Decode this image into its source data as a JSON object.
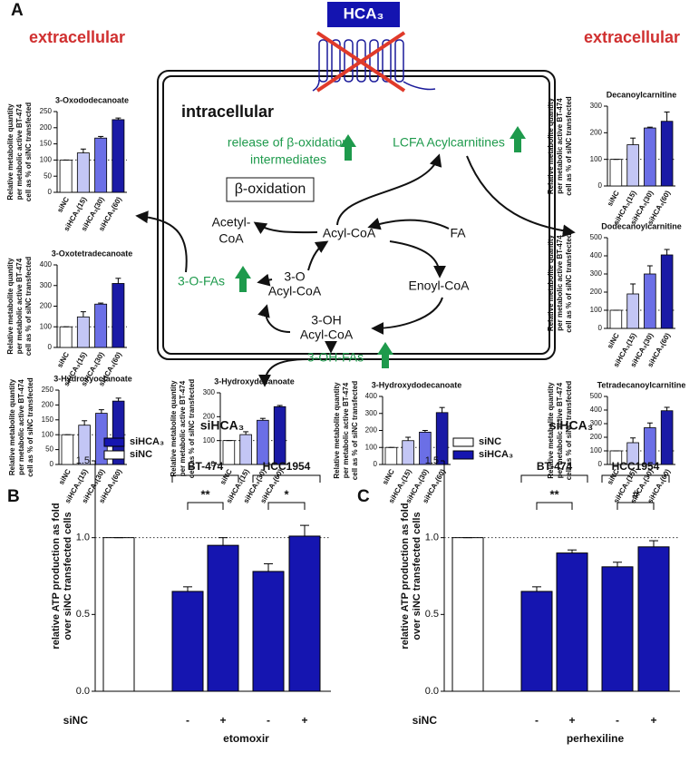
{
  "panel_labels": [
    "A",
    "B",
    "C"
  ],
  "diagram": {
    "extracellular_left": "extracellular",
    "extracellular_right": "extracellular",
    "receptor": "HCA₃",
    "compartment": "intracellular",
    "release": [
      "release of β-oxidation",
      "intermediates"
    ],
    "lcfa": "LCFA Acylcarnitines",
    "beta_oxidation": "β-oxidation",
    "acetyl_coa": [
      "Acetyl-",
      "CoA"
    ],
    "acyl_coa": "Acyl-CoA",
    "fa": "FA",
    "oxo_acyl_coa": [
      "3-O",
      "Acyl-CoA"
    ],
    "enoyl_coa": "Enoyl-CoA",
    "oh_acyl_coa": [
      "3-OH",
      "Acyl-CoA"
    ],
    "oxo_fas": "3-O-FAs",
    "oh_fas": "3-OH-FAs"
  },
  "chart_data": [
    {
      "type": "bar",
      "title": "3-Oxododecanoate",
      "ylabel": [
        "Relative metabolite quantity",
        "per metabolic active BT-474",
        "cell as % of siNC transfected"
      ],
      "categories": [
        "siNC",
        "siHCA₃(15)",
        "siHCA₃(30)",
        "siHCA₃(60)"
      ],
      "values": [
        100,
        122,
        168,
        225
      ],
      "errors": [
        0,
        12,
        5,
        5
      ],
      "colors": [
        "#ffffff",
        "#c3c6f5",
        "#6b6fe6",
        "#1a1aa6"
      ],
      "ylim": [
        0,
        250
      ],
      "yticks": [
        0,
        50,
        100,
        150,
        200,
        250
      ],
      "reference_line": 100
    },
    {
      "type": "bar",
      "title": "3-Oxotetradecanoate",
      "ylabel": [
        "Relative metabolite quantity",
        "per metabolic active BT-474",
        "cell as % of siNC transfected"
      ],
      "categories": [
        "siNC",
        "siHCA₃(15)",
        "siHCA₃(30)",
        "siHCA₃(60)"
      ],
      "values": [
        100,
        148,
        210,
        310
      ],
      "errors": [
        0,
        25,
        5,
        25
      ],
      "colors": [
        "#ffffff",
        "#c3c6f5",
        "#6b6fe6",
        "#1a1aa6"
      ],
      "ylim": [
        0,
        400
      ],
      "yticks": [
        0,
        100,
        200,
        300,
        400
      ],
      "reference_line": 100
    },
    {
      "type": "bar",
      "title": "3-Hydroxyoctanoate",
      "ylabel": [
        "Relative metabolite quantity",
        "per metabolic active BT-474",
        "cell as % of siNC transfected"
      ],
      "categories": [
        "siNC",
        "siHCA₃(15)",
        "siHCA₃(30)",
        "siHCA₃(60)"
      ],
      "values": [
        100,
        132,
        172,
        213
      ],
      "errors": [
        0,
        15,
        12,
        10
      ],
      "colors": [
        "#ffffff",
        "#c3c6f5",
        "#6b6fe6",
        "#1a1aa6"
      ],
      "ylim": [
        0,
        250
      ],
      "yticks": [
        0,
        50,
        100,
        150,
        200,
        250
      ],
      "reference_line": 100
    },
    {
      "type": "bar",
      "title": "3-Hydroxydecanoate",
      "ylabel": [
        "Relative metabolite quantity",
        "per metabolic active BT-474",
        "cell as % of siNC transfected"
      ],
      "categories": [
        "siNC",
        "siHCA₃(15)",
        "siHCA₃(30)",
        "siHCA₃(60)"
      ],
      "values": [
        100,
        125,
        185,
        242
      ],
      "errors": [
        0,
        12,
        8,
        5
      ],
      "colors": [
        "#ffffff",
        "#c3c6f5",
        "#6b6fe6",
        "#1a1aa6"
      ],
      "ylim": [
        0,
        300
      ],
      "yticks": [
        0,
        100,
        200,
        300
      ],
      "reference_line": 100
    },
    {
      "type": "bar",
      "title": "3-Hydroxydodecanoate",
      "ylabel": [
        "Relative metabolite quantity",
        "per metabolic active BT-474",
        "cell as % of siNC transfected"
      ],
      "categories": [
        "siNC",
        "siHCA₃(15)",
        "siHCA₃(30)",
        "siHCA₃(60)"
      ],
      "values": [
        100,
        140,
        190,
        305
      ],
      "errors": [
        0,
        20,
        10,
        30
      ],
      "colors": [
        "#ffffff",
        "#c3c6f5",
        "#6b6fe6",
        "#1a1aa6"
      ],
      "ylim": [
        0,
        400
      ],
      "yticks": [
        0,
        100,
        200,
        300,
        400
      ],
      "reference_line": 100
    },
    {
      "type": "bar",
      "title": "Decanoylcarnitine",
      "ylabel": [
        "Relative metabolite quantity",
        "per metabolic active BT-474",
        "cell as % of siNC transfected"
      ],
      "categories": [
        "siNC",
        "siHCA₃(15)",
        "siHCA₃(30)",
        "siHCA₃(60)"
      ],
      "values": [
        100,
        155,
        218,
        243
      ],
      "errors": [
        0,
        25,
        3,
        35
      ],
      "colors": [
        "#ffffff",
        "#c3c6f5",
        "#6b6fe6",
        "#1a1aa6"
      ],
      "ylim": [
        0,
        300
      ],
      "yticks": [
        0,
        100,
        200,
        300
      ],
      "reference_line": 100
    },
    {
      "type": "bar",
      "title": "Dodecanoylcarnitine",
      "ylabel": [
        "Relative metabolite quantity",
        "per metabolic active BT-474",
        "cell as % of siNC transfected"
      ],
      "categories": [
        "siNC",
        "siHCA₃(15)",
        "siHCA₃(30)",
        "siHCA₃(60)"
      ],
      "values": [
        100,
        190,
        300,
        405
      ],
      "errors": [
        0,
        55,
        45,
        30
      ],
      "colors": [
        "#ffffff",
        "#c3c6f5",
        "#6b6fe6",
        "#1a1aa6"
      ],
      "ylim": [
        0,
        500
      ],
      "yticks": [
        0,
        100,
        200,
        300,
        400,
        500
      ],
      "reference_line": 100
    },
    {
      "type": "bar",
      "title": "Tetradecanoylcarnitine",
      "ylabel": [
        "Relative metabolite quantity",
        "per metabolic active BT-474",
        "cell as % of siNC transfected"
      ],
      "categories": [
        "siNC",
        "siHCA₃(15)",
        "siHCA₃(30)",
        "siHCA₃(60)"
      ],
      "values": [
        100,
        160,
        270,
        395
      ],
      "errors": [
        0,
        35,
        35,
        25
      ],
      "colors": [
        "#ffffff",
        "#c3c6f5",
        "#6b6fe6",
        "#1a1aa6"
      ],
      "ylim": [
        0,
        500
      ],
      "yticks": [
        0,
        100,
        200,
        300,
        400,
        500
      ],
      "reference_line": 100
    },
    {
      "type": "grouped_bar",
      "title": "siHCA₃",
      "ylabel": [
        "relative ATP production as fold",
        "over siNC transfected cells"
      ],
      "row_label": "siNC",
      "xlabel": "etomoxir",
      "categories": [
        null,
        "-",
        "+",
        "-",
        "+"
      ],
      "series": [
        {
          "name": "siHCA₃",
          "color": "#1515b0",
          "values": [
            null,
            0.65,
            0.95,
            0.78,
            1.01
          ],
          "errors": [
            null,
            0.03,
            0.05,
            0.05,
            0.07
          ]
        },
        {
          "name": "siNC",
          "color": "#ffffff",
          "values": [
            1.0,
            null,
            null,
            null,
            null
          ],
          "errors": [
            0,
            null,
            null,
            null,
            null
          ]
        }
      ],
      "groups": [
        {
          "label": "BT-474",
          "significance": "**"
        },
        {
          "label": "HCC1954",
          "significance": "*"
        }
      ],
      "ylim": [
        0,
        1.5
      ],
      "yticks": [
        {
          "value": 0,
          "label": "0.0"
        },
        {
          "value": 0.5,
          "label": "0.5"
        },
        {
          "value": 1,
          "label": "1.0"
        },
        {
          "value": 1.5,
          "label": "1.5"
        }
      ],
      "reference_line": 1,
      "legend": "upper left"
    },
    {
      "type": "grouped_bar",
      "title": "siHCA₃",
      "ylabel": [
        "relative ATP production as fold",
        "over siNC transfected cells"
      ],
      "row_label": "siNC",
      "xlabel": "perhexiline",
      "categories": [
        null,
        "-",
        "+",
        "-",
        "+"
      ],
      "series": [
        {
          "name": "siNC",
          "color": "#ffffff",
          "values": [
            1.0,
            null,
            null,
            null,
            null
          ],
          "errors": [
            0,
            null,
            null,
            null,
            null
          ]
        },
        {
          "name": "siHCA₃",
          "color": "#1515b0",
          "values": [
            null,
            0.65,
            0.9,
            0.81,
            0.94
          ],
          "errors": [
            null,
            0.03,
            0.02,
            0.03,
            0.04
          ]
        }
      ],
      "groups": [
        {
          "label": "BT-474",
          "significance": "**"
        },
        {
          "label": "HCC1954",
          "significance": "#"
        }
      ],
      "ylim": [
        0,
        1.5
      ],
      "yticks": [
        {
          "value": 0,
          "label": "0.0"
        },
        {
          "value": 0.5,
          "label": "0.5"
        },
        {
          "value": 1,
          "label": "1.0"
        },
        {
          "value": 1.5,
          "label": "1.5"
        }
      ],
      "reference_line": 1,
      "legend": "upper left"
    }
  ]
}
